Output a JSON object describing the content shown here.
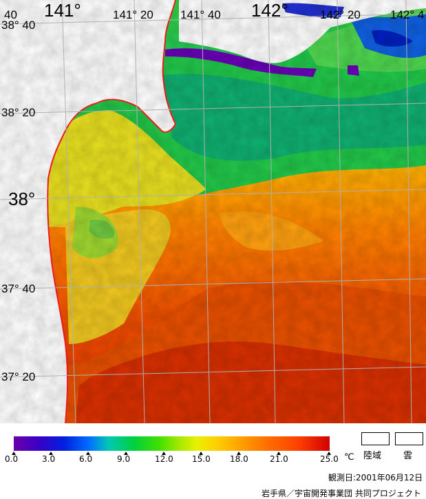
{
  "map": {
    "lon_labels": [
      {
        "text": "141°",
        "size": "big"
      },
      {
        "text": "141° 20",
        "size": "small"
      },
      {
        "text": "141° 40",
        "size": "small"
      },
      {
        "text": "142°",
        "size": "big"
      },
      {
        "text": "142° 20",
        "size": "small"
      },
      {
        "text": "142° 4",
        "size": "small"
      }
    ],
    "lat_labels": [
      {
        "text": "38° 40",
        "size": "small"
      },
      {
        "text": "38° 20",
        "size": "small"
      },
      {
        "text": "38°",
        "size": "big"
      },
      {
        "text": "37° 40",
        "size": "small"
      },
      {
        "text": "37° 20",
        "size": "small"
      }
    ],
    "corner_label": "40",
    "colors": {
      "coast": "#ff2020",
      "grid": "#b0b0b0",
      "cloud": "#ffffff",
      "land": "#ffffff"
    }
  },
  "colorbar": {
    "unit": "℃",
    "ticks": [
      "0.0",
      "3.0",
      "6.0",
      "9.0",
      "12.0",
      "15.0",
      "18.0",
      "21.0",
      "25.0"
    ]
  },
  "legend": {
    "land_label": "陸域",
    "cloud_label": "雲"
  },
  "observation_date": "観測日:2001年06月12日",
  "credit": "岩手県／宇宙開発事業団 共同プロジェクト"
}
